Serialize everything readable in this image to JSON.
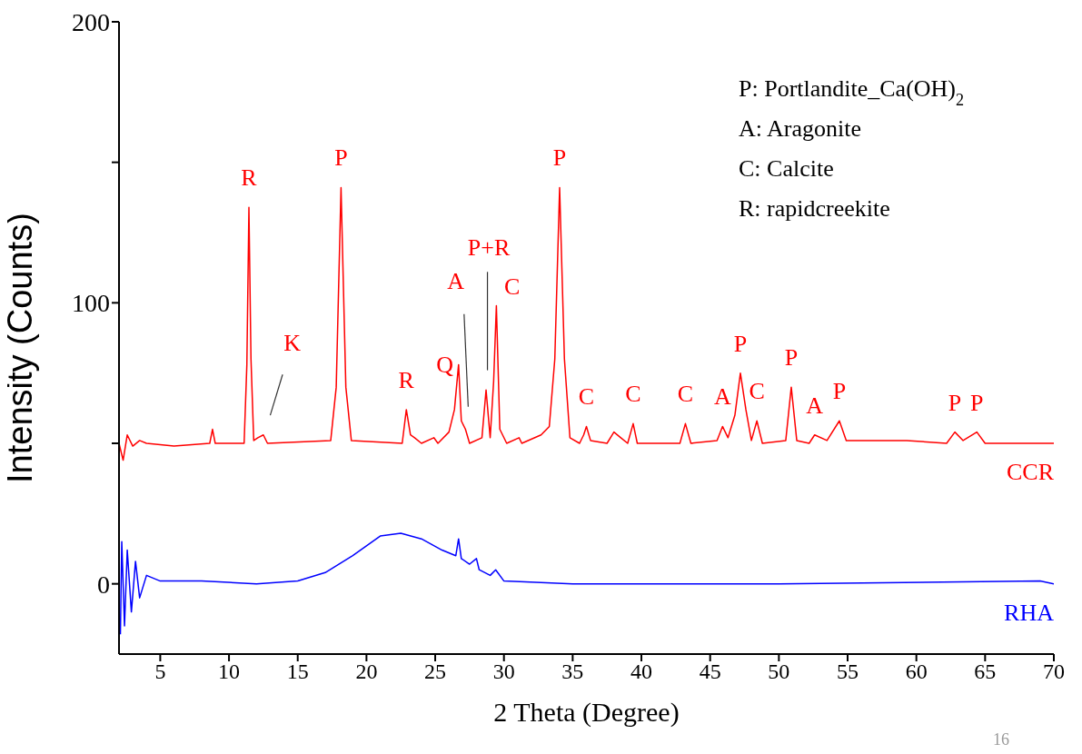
{
  "chart_data": {
    "type": "line",
    "xlabel": "2 Theta (Degree)",
    "ylabel": "Intensity (Counts)",
    "xlim": [
      2,
      70
    ],
    "xticks": [
      5,
      10,
      15,
      20,
      25,
      30,
      35,
      40,
      45,
      50,
      55,
      60,
      65,
      70
    ],
    "ylim": [
      -25,
      200
    ],
    "yticks": [
      0,
      {
        "value": 50,
        "label": null
      },
      100,
      {
        "value": 150,
        "label": null
      },
      200
    ],
    "grid": false,
    "marker": "none",
    "line_style": "solid",
    "series": [
      {
        "name": "CCR",
        "color": "#ff0000",
        "x": [
          2,
          2.3,
          2.6,
          3,
          3.5,
          4,
          6,
          8.6,
          8.8,
          9.0,
          11.1,
          11.3,
          11.45,
          11.6,
          11.8,
          12.1,
          12.5,
          12.8,
          17.4,
          17.8,
          18.15,
          18.5,
          18.9,
          22.6,
          22.9,
          23.2,
          23.5,
          24,
          24.9,
          25.2,
          26,
          26.4,
          26.7,
          26.9,
          27.2,
          27.5,
          28.4,
          28.7,
          29.0,
          29.25,
          29.45,
          29.7,
          30.2,
          31.1,
          31.3,
          32.7,
          33.3,
          33.7,
          34.05,
          34.4,
          34.8,
          35.5,
          35.8,
          36.0,
          36.3,
          37.5,
          38,
          38.5,
          39,
          39.4,
          39.7,
          42.8,
          43.2,
          43.6,
          45.5,
          45.9,
          46.3,
          46.8,
          47.2,
          47.6,
          48.0,
          48.4,
          48.8,
          50.5,
          50.9,
          51.3,
          52.2,
          52.6,
          53.5,
          54.4,
          54.9,
          57.5,
          59.3,
          62.2,
          62.8,
          63.4,
          64.4,
          65,
          70
        ],
        "values": [
          50,
          44,
          53,
          49,
          51,
          50,
          49,
          50,
          55,
          50,
          50,
          78,
          134,
          80,
          51,
          52,
          53,
          50,
          51,
          70,
          141,
          70,
          51,
          50,
          62,
          53,
          52,
          50,
          52,
          50,
          54,
          62,
          78,
          58,
          55,
          50,
          52,
          69,
          52,
          72,
          99,
          55,
          50,
          52,
          50,
          53,
          56,
          80,
          141,
          80,
          52,
          50,
          53,
          56,
          51,
          50,
          54,
          52,
          50,
          57,
          50,
          50,
          57,
          50,
          51,
          56,
          52,
          60,
          75,
          62,
          51,
          58,
          50,
          51,
          70,
          51,
          50,
          53,
          51,
          58,
          51,
          51,
          51,
          50,
          54,
          51,
          54,
          50,
          50
        ]
      },
      {
        "name": "RHA",
        "color": "#0000ff",
        "x": [
          2.1,
          2.2,
          2.4,
          2.6,
          2.9,
          3.2,
          3.5,
          4,
          5,
          8,
          12,
          15,
          17,
          19,
          21,
          22.5,
          24,
          25.5,
          26.5,
          26.7,
          26.9,
          27.5,
          28,
          28.2,
          29,
          29.4,
          30,
          35,
          50,
          69,
          70
        ],
        "values": [
          -18,
          15,
          -15,
          12,
          -10,
          8,
          -5,
          3,
          1,
          1,
          0,
          1,
          4,
          10,
          17,
          18,
          16,
          12,
          10,
          16,
          9,
          7,
          9,
          5,
          3,
          5,
          1,
          0,
          0,
          1,
          0
        ]
      }
    ],
    "annotations": [
      "P: Portlandite_Ca(OH)$_{2}$",
      "A: Aragonite",
      "C: Calcite",
      "R: rapidcreekite",
      "16",
      "K",
      "A",
      "P+R",
      {
        "text": "R",
        "x": 11.45,
        "y": 134
      },
      {
        "text": "P",
        "x": 18.15,
        "y": 141
      },
      {
        "text": "R",
        "x": 22.9,
        "y": 62
      },
      {
        "text": "Q",
        "x": 26.7,
        "y": 78
      },
      {
        "text": "C",
        "x": 29.45,
        "y": 99
      },
      {
        "text": "P",
        "x": 34.05,
        "y": 141
      },
      {
        "text": "C",
        "x": 36,
        "y": 56
      },
      {
        "text": "C",
        "x": 39.4,
        "y": 57
      },
      {
        "text": "C",
        "x": 43.2,
        "y": 57
      },
      {
        "text": "A",
        "x": 45.9,
        "y": 56
      },
      {
        "text": "P",
        "x": 47.2,
        "y": 75
      },
      {
        "text": "C",
        "x": 48.4,
        "y": 58
      },
      {
        "text": "P",
        "x": 50.9,
        "y": 70
      },
      {
        "text": "A",
        "x": 52.6,
        "y": 53
      },
      {
        "text": "P",
        "x": 54.4,
        "y": 58
      },
      {
        "text": "P",
        "x": 62.8,
        "y": 54
      },
      {
        "text": "P",
        "x": 64.4,
        "y": 54
      }
    ]
  }
}
